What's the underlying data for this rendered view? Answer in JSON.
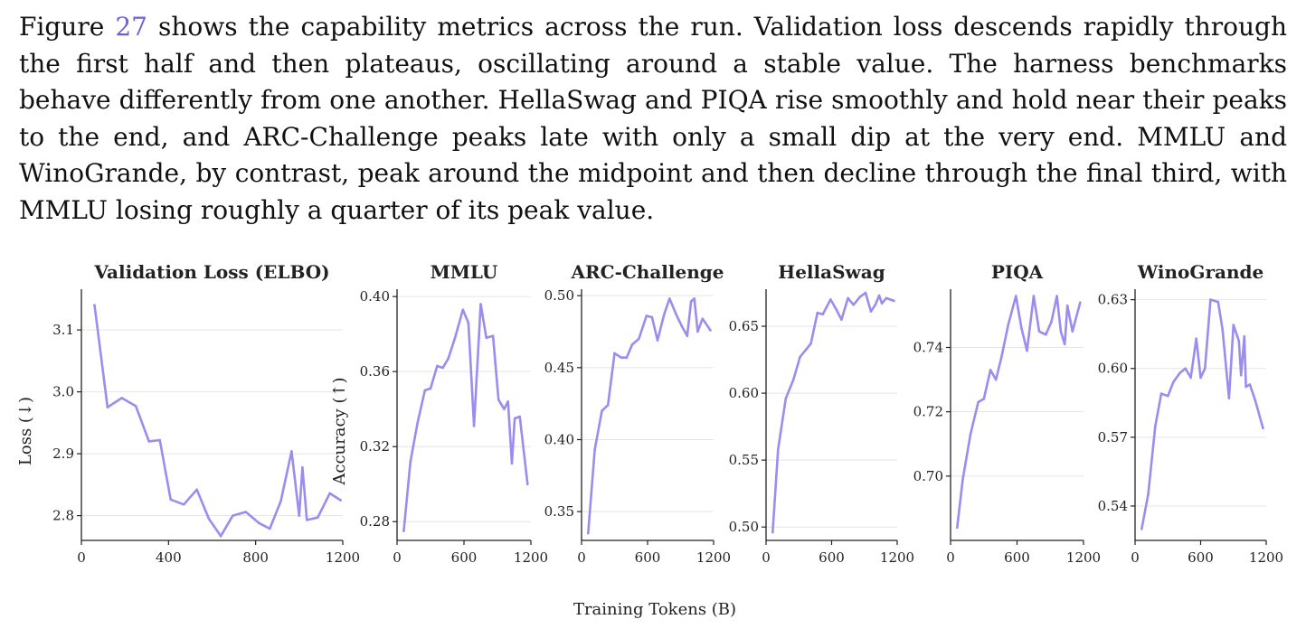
{
  "paragraph": {
    "before_ref": "Figure ",
    "ref": "27",
    "after_ref": " shows the capability metrics across the run. Validation loss descends rapidly through the first half and then plateaus, oscillating around a stable value. The harness benchmarks behave differently from one another. HellaSwag and PIQA rise smoothly and hold near their peaks to the end, and ARC-Challenge peaks late with only a small dip at the very end. MMLU and WinoGrande, by contrast, peak around the midpoint and then decline through the final third, with MMLU losing roughly a quarter of its peak value."
  },
  "colors": {
    "line": "#9b8cf0",
    "grid": "#e4e4e4",
    "axis": "#222222",
    "link": "#6a5fd8"
  },
  "figure": {
    "xlabel": "Training Tokens (B)"
  },
  "chart_data": [
    {
      "type": "line",
      "title": "Validation Loss (ELBO)",
      "ylabel": "Loss (↓)",
      "xlim": [
        0,
        1200
      ],
      "ylim": [
        2.76,
        3.16
      ],
      "xticks": [
        0,
        400,
        800,
        1200
      ],
      "yticks": [
        2.8,
        2.9,
        3.0,
        3.1
      ],
      "grid": true,
      "x": [
        60,
        120,
        185,
        250,
        310,
        360,
        410,
        470,
        530,
        585,
        640,
        695,
        755,
        815,
        865,
        915,
        965,
        1000,
        1015,
        1035,
        1085,
        1140,
        1190
      ],
      "y": [
        3.14,
        2.975,
        2.99,
        2.977,
        2.92,
        2.922,
        2.826,
        2.818,
        2.842,
        2.795,
        2.767,
        2.8,
        2.806,
        2.788,
        2.779,
        2.823,
        2.904,
        2.8,
        2.878,
        2.793,
        2.797,
        2.836,
        2.825
      ]
    },
    {
      "type": "line",
      "title": "MMLU",
      "ylabel": "Accuracy (↑)",
      "xlim": [
        0,
        1200
      ],
      "ylim": [
        0.27,
        0.402
      ],
      "xticks": [
        0,
        600,
        1200
      ],
      "yticks": [
        0.28,
        0.32,
        0.36,
        0.4
      ],
      "grid": true,
      "x": [
        60,
        120,
        185,
        250,
        300,
        360,
        410,
        460,
        520,
        590,
        640,
        690,
        750,
        800,
        860,
        910,
        960,
        995,
        1030,
        1055,
        1100,
        1170
      ],
      "y": [
        0.275,
        0.312,
        0.333,
        0.35,
        0.351,
        0.363,
        0.362,
        0.367,
        0.378,
        0.393,
        0.386,
        0.331,
        0.396,
        0.378,
        0.379,
        0.345,
        0.34,
        0.344,
        0.311,
        0.335,
        0.336,
        0.3
      ]
    },
    {
      "type": "line",
      "title": "ARC-Challenge",
      "ylabel": "",
      "xlim": [
        0,
        1200
      ],
      "ylim": [
        0.33,
        0.502
      ],
      "xticks": [
        0,
        600,
        1200
      ],
      "yticks": [
        0.35,
        0.4,
        0.45,
        0.5
      ],
      "grid": true,
      "x": [
        60,
        120,
        185,
        240,
        300,
        360,
        410,
        460,
        520,
        590,
        640,
        690,
        750,
        800,
        860,
        910,
        960,
        995,
        1025,
        1055,
        1100,
        1170
      ],
      "y": [
        0.335,
        0.393,
        0.42,
        0.424,
        0.46,
        0.457,
        0.457,
        0.466,
        0.47,
        0.486,
        0.485,
        0.469,
        0.487,
        0.498,
        0.487,
        0.479,
        0.472,
        0.496,
        0.498,
        0.475,
        0.484,
        0.476
      ]
    },
    {
      "type": "line",
      "title": "HellaSwag",
      "ylabel": "",
      "xlim": [
        0,
        1200
      ],
      "ylim": [
        0.49,
        0.675
      ],
      "xticks": [
        0,
        600,
        1200
      ],
      "yticks": [
        0.5,
        0.55,
        0.6,
        0.65
      ],
      "grid": true,
      "x": [
        60,
        110,
        180,
        250,
        310,
        360,
        410,
        470,
        520,
        590,
        640,
        690,
        750,
        800,
        860,
        910,
        960,
        1000,
        1035,
        1060,
        1100,
        1170
      ],
      "y": [
        0.496,
        0.558,
        0.596,
        0.61,
        0.627,
        0.632,
        0.637,
        0.66,
        0.659,
        0.67,
        0.663,
        0.655,
        0.671,
        0.666,
        0.672,
        0.675,
        0.661,
        0.666,
        0.673,
        0.667,
        0.671,
        0.669
      ]
    },
    {
      "type": "line",
      "title": "PIQA",
      "ylabel": "",
      "xlim": [
        0,
        1200
      ],
      "ylim": [
        0.68,
        0.757
      ],
      "xticks": [
        0,
        600,
        1200
      ],
      "yticks": [
        0.7,
        0.72,
        0.74
      ],
      "grid": true,
      "x": [
        60,
        110,
        180,
        250,
        300,
        360,
        410,
        460,
        520,
        590,
        640,
        690,
        750,
        800,
        860,
        910,
        960,
        995,
        1030,
        1055,
        1100,
        1170
      ],
      "y": [
        0.684,
        0.699,
        0.713,
        0.723,
        0.724,
        0.733,
        0.73,
        0.737,
        0.747,
        0.756,
        0.746,
        0.739,
        0.756,
        0.745,
        0.744,
        0.748,
        0.756,
        0.745,
        0.741,
        0.753,
        0.745,
        0.754
      ]
    },
    {
      "type": "line",
      "title": "WinoGrande",
      "ylabel": "",
      "xlim": [
        0,
        1200
      ],
      "ylim": [
        0.525,
        0.633
      ],
      "xticks": [
        0,
        600,
        1200
      ],
      "yticks": [
        0.54,
        0.57,
        0.6,
        0.63
      ],
      "grid": true,
      "x": [
        60,
        120,
        185,
        240,
        300,
        350,
        410,
        460,
        510,
        560,
        600,
        640,
        690,
        760,
        800,
        860,
        900,
        950,
        970,
        1000,
        1015,
        1050,
        1100,
        1170
      ],
      "y": [
        0.53,
        0.545,
        0.575,
        0.589,
        0.588,
        0.594,
        0.598,
        0.6,
        0.596,
        0.613,
        0.596,
        0.6,
        0.63,
        0.629,
        0.617,
        0.587,
        0.619,
        0.612,
        0.597,
        0.614,
        0.592,
        0.593,
        0.586,
        0.574
      ]
    }
  ]
}
